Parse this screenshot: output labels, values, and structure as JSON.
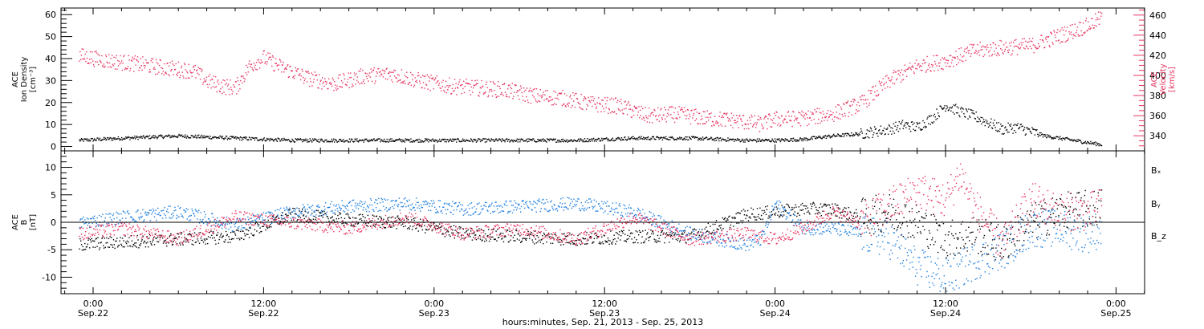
{
  "chart_data": [
    {
      "type": "scatter",
      "panel": "top",
      "ylabel_lines": [
        "ACE",
        "Ion Density",
        "[cm⁻³]"
      ],
      "ylim": [
        -2,
        63
      ],
      "yticks": [
        0,
        10,
        20,
        30,
        40,
        50,
        60
      ],
      "y2label_lines": [
        "ACE",
        "Velocity",
        "[km/s]"
      ],
      "y2lim": [
        325,
        467
      ],
      "y2ticks": [
        340,
        360,
        380,
        400,
        420,
        440,
        460
      ],
      "series": [
        {
          "name": "",
          "axis": "left",
          "color": "#000000",
          "x": [
            -1,
            2,
            6,
            10,
            14,
            18,
            22,
            26,
            30,
            34,
            38,
            42,
            46,
            48,
            50,
            52,
            54,
            56,
            57,
            58,
            59,
            60,
            61,
            62,
            63,
            64,
            65,
            66,
            67,
            68,
            69,
            70,
            71
          ],
          "y": [
            3,
            4,
            5,
            4,
            3,
            3,
            3,
            3,
            3,
            3,
            4,
            4,
            3,
            3,
            3.5,
            5,
            6,
            8,
            10,
            9,
            13,
            19,
            16,
            14,
            11,
            8,
            9,
            7,
            5,
            4,
            3,
            2,
            1
          ]
        },
        {
          "name": "",
          "axis": "right",
          "color": "#e8345f",
          "x": [
            -1,
            1,
            3,
            5,
            7,
            8,
            9,
            10,
            11,
            12,
            13,
            15,
            17,
            19,
            21,
            23,
            25,
            27,
            29,
            31,
            33,
            35,
            37,
            39,
            41,
            43,
            45,
            47,
            48,
            50,
            52,
            54,
            56,
            58,
            60,
            62,
            64,
            66,
            68,
            70,
            71
          ],
          "y": [
            420,
            415,
            412,
            408,
            405,
            395,
            390,
            388,
            410,
            418,
            410,
            398,
            392,
            400,
            402,
            395,
            390,
            388,
            386,
            380,
            378,
            372,
            370,
            360,
            362,
            358,
            356,
            352,
            357,
            358,
            362,
            372,
            395,
            410,
            415,
            425,
            428,
            430,
            440,
            450,
            458
          ]
        }
      ]
    },
    {
      "type": "scatter",
      "panel": "bottom",
      "ylabel_lines": [
        "ACE",
        "B",
        "[nT]"
      ],
      "ylim": [
        -13,
        13
      ],
      "yticks": [
        -10,
        -5,
        0,
        5,
        10
      ],
      "zero_line": true,
      "legend_labels": [
        "Bₓ",
        "Bᵧ",
        "B_z"
      ],
      "series": [
        {
          "name": "Bₓ",
          "color": "#000000",
          "x": [
            -1,
            2,
            6,
            10,
            14,
            18,
            22,
            26,
            30,
            34,
            38,
            42,
            46,
            48,
            50,
            52,
            54,
            56,
            58,
            60,
            62,
            64,
            66,
            68,
            70,
            71
          ],
          "y": [
            -4,
            -3.5,
            -3,
            -2.5,
            1.5,
            0.5,
            0,
            -2,
            -2.5,
            -3,
            -2.5,
            -2.5,
            1.5,
            2,
            2.5,
            2.5,
            1,
            2,
            0,
            -3,
            -2,
            -4,
            0,
            2,
            2.5,
            3
          ]
        },
        {
          "name": "Bᵧ",
          "color": "#1f7fe0",
          "x": [
            -1,
            2,
            6,
            10,
            14,
            18,
            22,
            26,
            30,
            34,
            38,
            42,
            46,
            47,
            48,
            50,
            52,
            54,
            56,
            58,
            60,
            62,
            64,
            66,
            68,
            70,
            71
          ],
          "y": [
            0,
            1,
            2,
            -0.5,
            2,
            3,
            3.5,
            2.5,
            3,
            3.5,
            2,
            -2,
            -4,
            -3,
            3.5,
            -1,
            -1,
            -2,
            -3,
            -8,
            -10,
            -7,
            -5,
            -1,
            -1,
            -2,
            -1
          ]
        },
        {
          "name": "B_z",
          "color": "#e8345f",
          "x": [
            -1,
            2,
            6,
            10,
            14,
            18,
            22,
            26,
            30,
            34,
            38,
            42,
            46,
            48,
            50,
            52,
            54,
            56,
            58,
            60,
            61,
            62,
            64,
            66,
            68,
            70,
            71
          ],
          "y": [
            -2,
            -1,
            -3,
            1,
            0,
            -1,
            1,
            -2,
            -1,
            -3,
            1,
            -3,
            -2,
            -3,
            -1,
            2,
            0,
            3,
            6,
            4,
            9,
            3,
            -4,
            4,
            2,
            2,
            3
          ]
        }
      ]
    }
  ],
  "x_axis": {
    "tick_hours": [
      0,
      12,
      24,
      36,
      48,
      60,
      72
    ],
    "time_labels": [
      "0:00",
      "12:00",
      "0:00",
      "12:00",
      "0:00",
      "12:00",
      "0:00"
    ],
    "date_labels": [
      "Sep.22",
      "Sep.22",
      "Sep.23",
      "Sep.23",
      "Sep.24",
      "Sep.24",
      "Sep.25"
    ],
    "title": "hours:minutes, Sep. 21, 2013 - Sep. 25, 2013"
  }
}
